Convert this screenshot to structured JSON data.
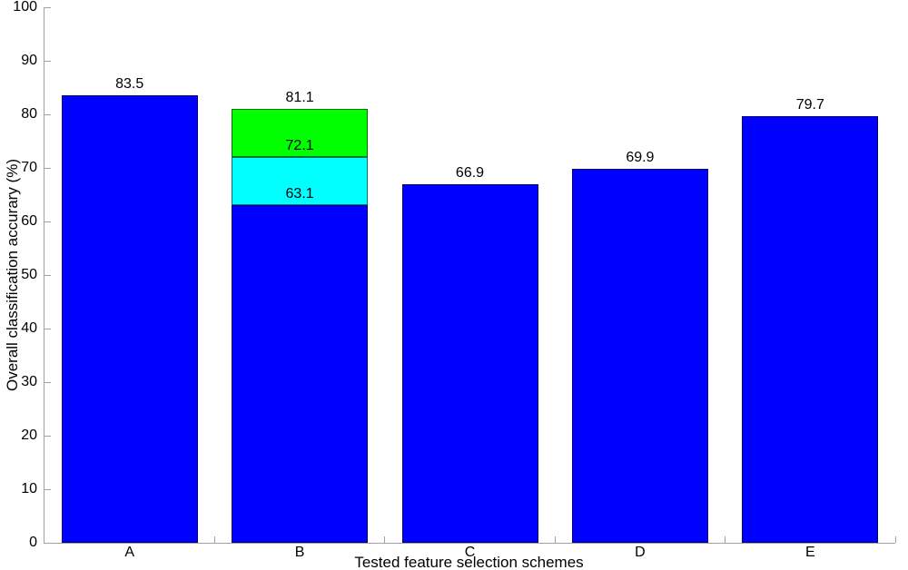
{
  "figure": {
    "background": "#ffffff",
    "axis_color": "#a0a0a0",
    "text_color": "#000000",
    "bar_edge_color": "rgba(0,0,0,0.55)"
  },
  "chart_data": {
    "type": "bar",
    "title": "",
    "xlabel": "Tested feature selection schemes",
    "ylabel": "Overall classification accurary (%)",
    "categories": [
      "A",
      "B",
      "C",
      "D",
      "E"
    ],
    "ylim": [
      0,
      100
    ],
    "yticks": [
      0,
      10,
      20,
      30,
      40,
      50,
      60,
      70,
      80,
      90,
      100
    ],
    "x_minor_ticks_between_bars": true,
    "grid": false,
    "legend": null,
    "bar_width_fraction": 0.8,
    "bars": [
      {
        "category": "A",
        "segments": [
          {
            "top": 83.5,
            "color": "#0000ff"
          }
        ],
        "annotations": [
          {
            "text": "83.5",
            "y": 83.5
          }
        ]
      },
      {
        "category": "B",
        "segments": [
          {
            "top": 63.1,
            "color": "#0000ff"
          },
          {
            "top": 72.1,
            "color": "#00ffff"
          },
          {
            "top": 81.1,
            "color": "#00ff00"
          }
        ],
        "annotations": [
          {
            "text": "63.1",
            "y": 63.1
          },
          {
            "text": "72.1",
            "y": 72.1
          },
          {
            "text": "81.1",
            "y": 81.1
          }
        ]
      },
      {
        "category": "C",
        "segments": [
          {
            "top": 66.9,
            "color": "#0000ff"
          }
        ],
        "annotations": [
          {
            "text": "66.9",
            "y": 66.9
          }
        ]
      },
      {
        "category": "D",
        "segments": [
          {
            "top": 69.9,
            "color": "#0000ff"
          }
        ],
        "annotations": [
          {
            "text": "69.9",
            "y": 69.9
          }
        ]
      },
      {
        "category": "E",
        "segments": [
          {
            "top": 79.7,
            "color": "#0000ff"
          }
        ],
        "annotations": [
          {
            "text": "79.7",
            "y": 79.7
          }
        ]
      }
    ]
  }
}
